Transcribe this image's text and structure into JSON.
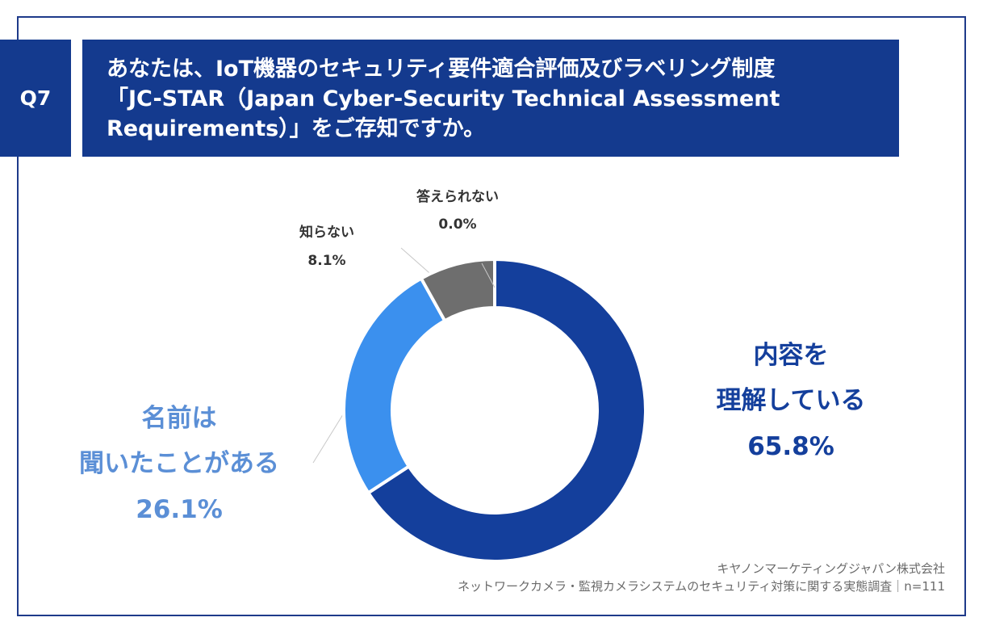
{
  "question": {
    "number": "Q7",
    "lines": [
      "あなたは、IoT機器のセキュリティ要件適合評価及びラベリング制度",
      "「JC-STAR（Japan Cyber-Security Technical Assessment",
      "Requirements）」をご存知ですか。"
    ]
  },
  "chart_data": {
    "type": "pie",
    "donut": true,
    "title": "",
    "slices": [
      {
        "label": "内容を理解している",
        "label_lines": [
          "内容を",
          "理解している"
        ],
        "value": 65.8,
        "display": "65.8%",
        "color": "#143f9c",
        "label_color": "#143f9c"
      },
      {
        "label": "名前は聞いたことがある",
        "label_lines": [
          "名前は",
          "聞いたことがある"
        ],
        "value": 26.1,
        "display": "26.1%",
        "color": "#3b90ee",
        "label_color": "#5b8fd6"
      },
      {
        "label": "知らない",
        "label_lines": [
          "知らない"
        ],
        "value": 8.1,
        "display": "8.1%",
        "color": "#6e6e6e",
        "label_color": "#333333"
      },
      {
        "label": "答えられない",
        "label_lines": [
          "答えられない"
        ],
        "value": 0.0,
        "display": "0.0%",
        "color": "#b0b0b0",
        "label_color": "#333333"
      }
    ]
  },
  "source": {
    "company": "キヤノンマーケティングジャパン株式会社",
    "survey": "ネットワークカメラ・監視カメラシステムのセキュリティ対策に関する実態調査｜n=111"
  }
}
